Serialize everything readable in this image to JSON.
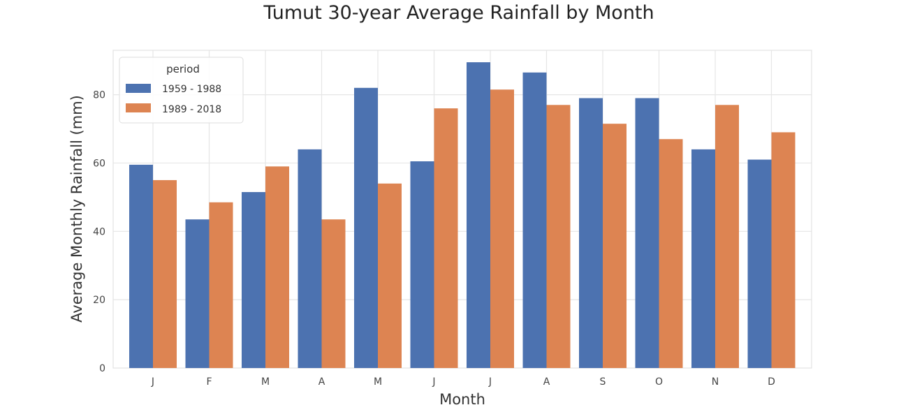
{
  "chart_data": {
    "type": "bar",
    "title": "Tumut  30-year Average Rainfall by Month",
    "xlabel": "Month",
    "ylabel": "Average Monthly Rainfall (mm)",
    "categories": [
      "J",
      "F",
      "M",
      "A",
      "M",
      "J",
      "J",
      "A",
      "S",
      "O",
      "N",
      "D"
    ],
    "ylim": [
      0,
      93
    ],
    "yticks": [
      0,
      20,
      40,
      60,
      80
    ],
    "grid": true,
    "legend": {
      "title": "period",
      "placement": "top-left"
    },
    "series": [
      {
        "name": "1959 - 1988",
        "color": "#4c72b0",
        "values": [
          59.5,
          43.5,
          51.5,
          64,
          82,
          60.5,
          89.5,
          86.5,
          79,
          79,
          64,
          61
        ]
      },
      {
        "name": "1989 - 2018",
        "color": "#dd8452",
        "values": [
          55,
          48.5,
          59,
          43.5,
          54,
          76,
          81.5,
          77,
          71.5,
          67,
          77,
          69
        ]
      }
    ]
  }
}
